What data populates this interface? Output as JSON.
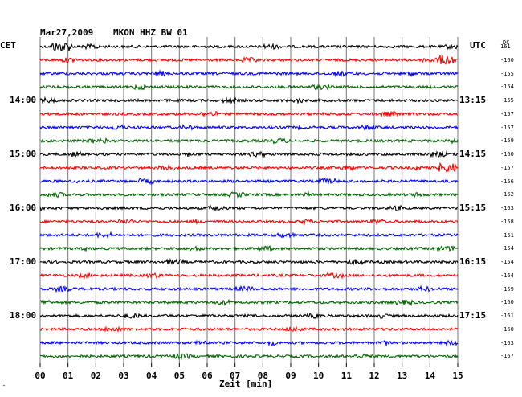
{
  "header": {
    "date": "Mar27,2009",
    "station": "MKON HHZ BW 01",
    "left_timezone": "CET",
    "right_timezone": "UTC",
    "dc_label": "DC"
  },
  "footer": {
    "x_axis_label": "Zeit [min]"
  },
  "corner_mark": "″",
  "chart_data": {
    "type": "line",
    "title": "Mar27,2009   MKON HHZ BW 01",
    "xlabel": "Zeit [min]",
    "xlim": [
      0,
      15
    ],
    "x_ticks": [
      "00",
      "01",
      "02",
      "03",
      "04",
      "05",
      "06",
      "07",
      "08",
      "09",
      "10",
      "11",
      "12",
      "13",
      "14",
      "15"
    ],
    "grid": true,
    "trace_interval_min": 15,
    "colors": [
      "#000000",
      "#ff0000",
      "#0000ff",
      "#006400"
    ],
    "left_hour_labels": [
      "14:00",
      "15:00",
      "16:00",
      "17:00",
      "18:00"
    ],
    "right_hour_labels": [
      "13:15",
      "14:15",
      "15:15",
      "16:15",
      "17:15"
    ],
    "hour_label_first_trace": 4,
    "dc_offsets": [
      "161",
      "-160",
      "-155",
      "-154",
      "-155",
      "-157",
      "-157",
      "-159",
      "-160",
      "-157",
      "-156",
      "-162",
      "-163",
      "-158",
      "-161",
      "-154",
      "-154",
      "-164",
      "-159",
      "-160",
      "-161",
      "-160",
      "-163",
      "-167"
    ]
  }
}
